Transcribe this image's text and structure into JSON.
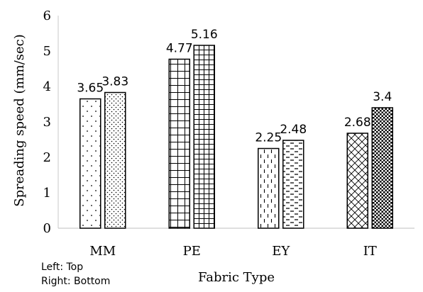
{
  "chart_data": {
    "type": "bar",
    "title": "",
    "xlabel": "Fabric Type",
    "ylabel": "Spreading speed (mm/sec)",
    "ylim": [
      0,
      6
    ],
    "yticks": [
      0,
      1,
      2,
      3,
      4,
      5,
      6
    ],
    "grid": false,
    "categories": [
      "MM",
      "PE",
      "EY",
      "IT"
    ],
    "bars": [
      {
        "category": "MM",
        "position": "left",
        "value": 3.65,
        "label": "3.65",
        "pattern": "sparse-dots"
      },
      {
        "category": "MM",
        "position": "right",
        "value": 3.83,
        "label": "3.83",
        "pattern": "dots"
      },
      {
        "category": "PE",
        "position": "left",
        "value": 4.77,
        "label": "4.77",
        "pattern": "large-grid"
      },
      {
        "category": "PE",
        "position": "right",
        "value": 5.16,
        "label": "5.16",
        "pattern": "small-grid"
      },
      {
        "category": "EY",
        "position": "left",
        "value": 2.25,
        "label": "2.25",
        "pattern": "vertical-dashes"
      },
      {
        "category": "EY",
        "position": "right",
        "value": 2.48,
        "label": "2.48",
        "pattern": "horizontal-dashes"
      },
      {
        "category": "IT",
        "position": "left",
        "value": 2.68,
        "label": "2.68",
        "pattern": "diagonal-lattice"
      },
      {
        "category": "IT",
        "position": "right",
        "value": 3.4,
        "label": "3.4",
        "pattern": "checkerboard"
      }
    ],
    "notes": [
      "Left: Top",
      "Right: Bottom"
    ]
  }
}
